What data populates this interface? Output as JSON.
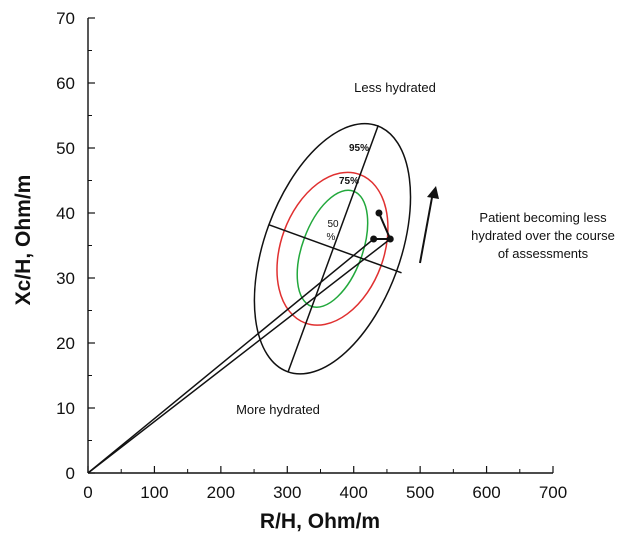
{
  "chart_data": {
    "type": "scatter",
    "title": "",
    "xlabel": "R/H, Ohm/m",
    "ylabel": "Xc/H, Ohm/m",
    "xlim": [
      0,
      700
    ],
    "ylim": [
      0,
      70
    ],
    "x_ticks": [
      "0",
      "100",
      "200",
      "300",
      "400",
      "500",
      "600",
      "700"
    ],
    "y_ticks": [
      "0",
      "10",
      "20",
      "30",
      "40",
      "50",
      "60",
      "70"
    ],
    "grid": false,
    "tolerance_ellipses": [
      {
        "label": "95%",
        "center": [
          368,
          34.5
        ],
        "color": "#111111",
        "ellipse_x_range": [
          250,
          485
        ],
        "ellipse_y_range": [
          15,
          53.5
        ]
      },
      {
        "label": "75%",
        "center": [
          368,
          34.5
        ],
        "color": "#e03030",
        "ellipse_x_range": [
          285,
          452
        ],
        "ellipse_y_range": [
          22.5,
          46
        ]
      },
      {
        "label": "50\n%",
        "center": [
          368,
          34.5
        ],
        "color": "#22a83c",
        "ellipse_x_range": [
          316,
          422
        ],
        "ellipse_y_range": [
          25,
          43
        ]
      }
    ],
    "major_axis": {
      "from": [
        301,
        15.5
      ],
      "to": [
        437,
        53.5
      ]
    },
    "minor_axis": {
      "from": [
        272,
        38.2
      ],
      "to": [
        472,
        30.8
      ]
    },
    "series": [
      {
        "values": [
          [
            438,
            40
          ],
          [
            455,
            36
          ],
          [
            430,
            36
          ]
        ]
      }
    ],
    "vectors_from_origin": [
      [
        430,
        36
      ],
      [
        455,
        36
      ]
    ],
    "annotations": {
      "top": "Less hydrated",
      "bottom": "More hydrated",
      "right_line1": "Patient becoming less",
      "right_line2": "hydrated over the course",
      "right_line3": "of assessments",
      "pct95": "95%",
      "pct75": "75%",
      "pct50_line1": "50",
      "pct50_line2": "%"
    },
    "colors": {
      "outer": "#111111",
      "mid": "#e03030",
      "inner": "#22a83c"
    }
  }
}
